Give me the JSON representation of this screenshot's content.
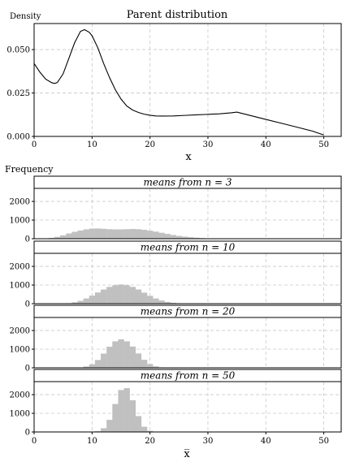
{
  "chart_data": [
    {
      "type": "line",
      "title": "Parent distribution",
      "xlabel": "x",
      "ylabel": "Density",
      "xlim": [
        0,
        53
      ],
      "ylim": [
        0,
        0.065
      ],
      "xticks": [
        "0",
        "10",
        "20",
        "30",
        "40",
        "50"
      ],
      "yticks": [
        "0.000",
        "0.025",
        "0.050"
      ],
      "grid": true,
      "x": [
        0,
        1,
        2,
        3,
        3.5,
        4,
        5,
        6,
        7,
        8,
        8.7,
        9.5,
        10,
        11,
        12,
        13,
        14,
        15,
        16,
        17,
        18,
        19,
        20,
        21,
        22,
        24,
        26,
        28,
        30,
        32,
        34,
        35,
        37,
        40,
        43,
        46,
        48,
        50
      ],
      "y": [
        0.042,
        0.037,
        0.033,
        0.031,
        0.0305,
        0.031,
        0.036,
        0.045,
        0.054,
        0.0605,
        0.0615,
        0.06,
        0.058,
        0.051,
        0.042,
        0.034,
        0.027,
        0.0215,
        0.0175,
        0.0152,
        0.0138,
        0.0128,
        0.0122,
        0.0118,
        0.0117,
        0.0118,
        0.0121,
        0.0124,
        0.0127,
        0.013,
        0.0136,
        0.014,
        0.0123,
        0.0098,
        0.0073,
        0.0048,
        0.0031,
        0.0008
      ]
    },
    {
      "type": "bar",
      "title": "means from n =  3",
      "xlabel": "",
      "ylabel": "Frequency",
      "xlim": [
        0,
        53
      ],
      "ylim": [
        0,
        2700
      ],
      "xticks": [
        "0",
        "10",
        "20",
        "30",
        "40",
        "50"
      ],
      "yticks": [
        "0",
        "1000",
        "2000"
      ],
      "grid": true,
      "x": [
        1,
        2,
        3,
        4,
        5,
        6,
        7,
        8,
        9,
        10,
        11,
        12,
        13,
        14,
        15,
        16,
        17,
        18,
        19,
        20,
        21,
        22,
        23,
        24,
        25,
        26,
        27,
        28,
        29,
        30,
        31,
        32,
        34,
        36
      ],
      "values": [
        2,
        15,
        45,
        100,
        180,
        280,
        370,
        440,
        500,
        540,
        550,
        530,
        510,
        500,
        500,
        510,
        520,
        510,
        480,
        430,
        380,
        320,
        260,
        200,
        150,
        110,
        80,
        55,
        35,
        22,
        14,
        8,
        3,
        1
      ]
    },
    {
      "type": "bar",
      "title": "means from n = 10",
      "xlabel": "",
      "ylabel": "Frequency",
      "xlim": [
        0,
        53
      ],
      "ylim": [
        0,
        2700
      ],
      "xticks": [
        "0",
        "10",
        "20",
        "30",
        "40",
        "50"
      ],
      "yticks": [
        "0",
        "1000",
        "2000"
      ],
      "grid": true,
      "x": [
        5,
        6,
        7,
        8,
        9,
        10,
        11,
        12,
        13,
        14,
        15,
        16,
        17,
        18,
        19,
        20,
        21,
        22,
        23,
        24,
        25,
        26,
        27,
        28
      ],
      "values": [
        5,
        25,
        70,
        150,
        280,
        430,
        600,
        760,
        900,
        990,
        1030,
        990,
        900,
        760,
        590,
        420,
        280,
        170,
        95,
        50,
        24,
        10,
        4,
        1
      ]
    },
    {
      "type": "bar",
      "title": "means from n = 20",
      "xlabel": "",
      "ylabel": "Frequency",
      "xlim": [
        0,
        53
      ],
      "ylim": [
        0,
        2700
      ],
      "xticks": [
        "0",
        "10",
        "20",
        "30",
        "40",
        "50"
      ],
      "yticks": [
        "0",
        "1000",
        "2000"
      ],
      "grid": true,
      "x": [
        7,
        8,
        9,
        10,
        11,
        12,
        13,
        14,
        15,
        16,
        17,
        18,
        19,
        20,
        21,
        22,
        23,
        24
      ],
      "values": [
        3,
        20,
        70,
        190,
        420,
        760,
        1130,
        1420,
        1530,
        1420,
        1140,
        770,
        430,
        200,
        80,
        25,
        7,
        2
      ]
    },
    {
      "type": "bar",
      "title": "means from n = 50",
      "xlabel": "x̅",
      "ylabel": "Frequency",
      "xlim": [
        0,
        53
      ],
      "ylim": [
        0,
        2700
      ],
      "xticks": [
        "0",
        "10",
        "20",
        "30",
        "40",
        "50"
      ],
      "yticks": [
        "0",
        "1000",
        "2000"
      ],
      "grid": true,
      "x": [
        10,
        11,
        12,
        13,
        14,
        15,
        16,
        17,
        18,
        19,
        20,
        21
      ],
      "values": [
        5,
        40,
        200,
        650,
        1500,
        2250,
        2350,
        1700,
        850,
        280,
        60,
        8
      ]
    }
  ]
}
